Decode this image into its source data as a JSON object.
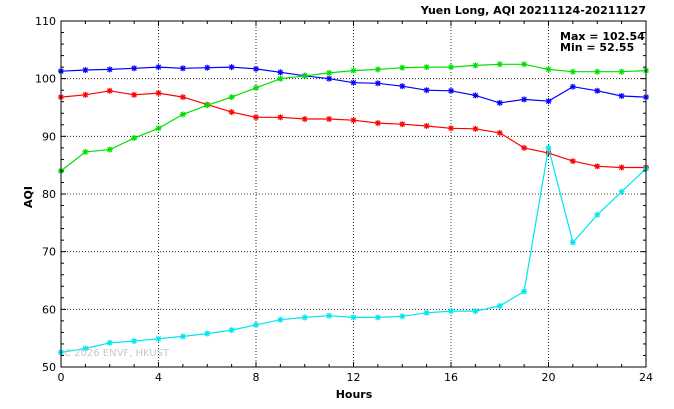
{
  "chart_data": {
    "type": "line",
    "title": "Yuen Long, AQI 20211124-20211127",
    "xlabel": "Hours",
    "ylabel": "AQI",
    "xlim": [
      0,
      24
    ],
    "ylim": [
      50,
      110
    ],
    "xticks": [
      0,
      4,
      8,
      12,
      16,
      20,
      24
    ],
    "yticks": [
      50,
      60,
      70,
      80,
      90,
      100,
      110
    ],
    "grid": "dotted",
    "x": [
      0,
      1,
      2,
      3,
      4,
      5,
      6,
      7,
      8,
      9,
      10,
      11,
      12,
      13,
      14,
      15,
      16,
      17,
      18,
      19,
      20,
      21,
      22,
      23,
      24
    ],
    "series": [
      {
        "color": "#0000ff",
        "values": [
          101.3,
          101.5,
          101.6,
          101.8,
          102.0,
          101.8,
          101.9,
          102.0,
          101.7,
          101.1,
          100.5,
          100.0,
          99.3,
          99.2,
          98.7,
          98.0,
          97.9,
          97.1,
          95.8,
          96.4,
          96.1,
          98.6,
          97.9,
          97.0,
          96.8
        ]
      },
      {
        "color": "#ff0000",
        "values": [
          96.8,
          97.2,
          97.9,
          97.2,
          97.5,
          96.8,
          95.5,
          94.2,
          93.3,
          93.3,
          93.0,
          93.0,
          92.8,
          92.3,
          92.1,
          91.8,
          91.4,
          91.3,
          90.6,
          88.0,
          87.1,
          85.7,
          84.8,
          84.6,
          84.6
        ]
      },
      {
        "color": "#00e000",
        "values": [
          84.0,
          87.3,
          87.7,
          89.7,
          91.4,
          93.8,
          95.4,
          96.8,
          98.4,
          100.0,
          100.5,
          101.0,
          101.4,
          101.6,
          101.9,
          102.0,
          102.0,
          102.3,
          102.5,
          102.5,
          101.6,
          101.2,
          101.2,
          101.2,
          101.4
        ]
      },
      {
        "color": "#00e5ee",
        "values": [
          52.55,
          53.2,
          54.2,
          54.5,
          54.9,
          55.3,
          55.8,
          56.4,
          57.3,
          58.2,
          58.6,
          58.9,
          58.6,
          58.6,
          58.8,
          59.4,
          59.7,
          59.7,
          60.6,
          63.1,
          88.0,
          71.6,
          76.4,
          80.4,
          84.4
        ]
      }
    ],
    "annotations": {
      "max_label": "Max = 102.54",
      "min_label": "Min =  52.55",
      "watermark": "C 2026 ENVF, HKUST"
    }
  }
}
